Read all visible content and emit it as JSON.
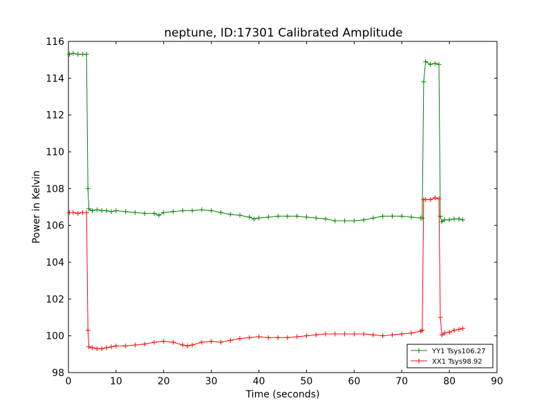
{
  "chart_data": {
    "type": "line",
    "title": "neptune, ID:17301 Calibrated Amplitude",
    "xlabel": "Time (seconds)",
    "ylabel": "Power in Kelvin",
    "xlim": [
      0,
      90
    ],
    "ylim": [
      98,
      116
    ],
    "xticks": [
      0,
      10,
      20,
      30,
      40,
      50,
      60,
      70,
      80,
      90
    ],
    "yticks": [
      98,
      100,
      102,
      104,
      106,
      108,
      110,
      112,
      114,
      116
    ],
    "grid": false,
    "legend_position": "lower-right",
    "marker": "+",
    "series": [
      {
        "name": "YY1 Tsys106.27",
        "color": "#008000",
        "x": [
          0.2,
          1,
          2,
          3,
          3.8,
          4.1,
          4.3,
          5,
          6,
          7,
          8,
          9,
          10,
          12,
          14,
          16,
          18,
          19,
          20,
          22,
          24,
          26,
          28,
          30,
          32,
          34,
          36,
          38,
          39,
          40,
          42,
          44,
          46,
          48,
          50,
          52,
          54,
          56,
          58,
          60,
          62,
          64,
          66,
          68,
          70,
          72,
          74,
          74.3,
          74.6,
          75,
          76,
          77,
          77.8,
          78.1,
          78.4,
          79,
          80,
          81,
          82,
          82.8
        ],
        "y": [
          115.3,
          115.35,
          115.3,
          115.3,
          115.3,
          108.0,
          106.9,
          106.8,
          106.85,
          106.8,
          106.8,
          106.75,
          106.8,
          106.75,
          106.7,
          106.65,
          106.65,
          106.55,
          106.7,
          106.75,
          106.8,
          106.8,
          106.85,
          106.8,
          106.7,
          106.6,
          106.55,
          106.45,
          106.35,
          106.4,
          106.45,
          106.5,
          106.5,
          106.5,
          106.45,
          106.4,
          106.35,
          106.25,
          106.25,
          106.25,
          106.3,
          106.4,
          106.5,
          106.5,
          106.5,
          106.45,
          106.4,
          106.4,
          113.8,
          114.9,
          114.75,
          114.8,
          114.75,
          106.5,
          106.2,
          106.3,
          106.3,
          106.35,
          106.35,
          106.3
        ]
      },
      {
        "name": "XX1 Tsys98.92",
        "color": "#ff0000",
        "x": [
          0.2,
          1,
          2,
          3,
          3.8,
          4.1,
          4.3,
          5,
          6,
          7,
          8,
          9,
          10,
          12,
          14,
          16,
          18,
          20,
          22,
          24,
          25,
          26,
          28,
          30,
          32,
          34,
          36,
          38,
          40,
          42,
          44,
          46,
          48,
          50,
          52,
          54,
          56,
          58,
          60,
          62,
          64,
          66,
          68,
          70,
          72,
          74,
          74.3,
          74.6,
          75,
          76,
          77,
          77.8,
          78.1,
          78.4,
          79,
          80,
          81,
          82,
          82.8
        ],
        "y": [
          106.7,
          106.7,
          106.65,
          106.7,
          106.7,
          100.3,
          99.4,
          99.35,
          99.3,
          99.3,
          99.35,
          99.4,
          99.45,
          99.45,
          99.5,
          99.55,
          99.65,
          99.7,
          99.65,
          99.5,
          99.45,
          99.5,
          99.65,
          99.7,
          99.65,
          99.75,
          99.85,
          99.9,
          99.95,
          99.9,
          99.9,
          99.9,
          99.95,
          100.0,
          100.05,
          100.1,
          100.1,
          100.1,
          100.1,
          100.1,
          100.05,
          100.0,
          100.05,
          100.1,
          100.15,
          100.25,
          100.3,
          107.4,
          107.4,
          107.4,
          107.5,
          107.45,
          101.0,
          100.05,
          100.15,
          100.2,
          100.3,
          100.35,
          100.4
        ]
      }
    ]
  }
}
